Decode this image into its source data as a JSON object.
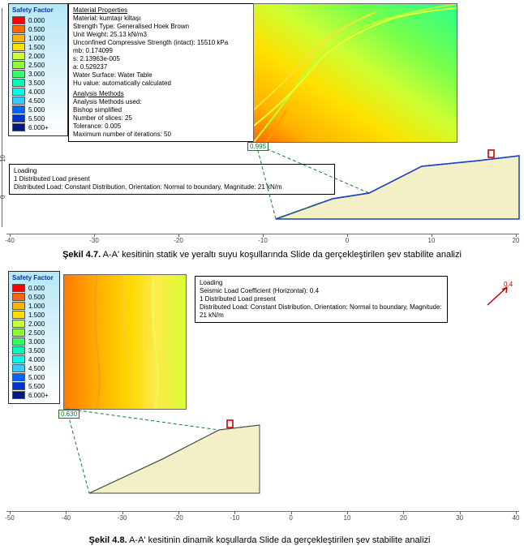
{
  "figure1": {
    "legend": {
      "title": "Safety Factor",
      "items": [
        {
          "label": "0.000",
          "color": "#ff0000"
        },
        {
          "label": "0.500",
          "color": "#ff6600"
        },
        {
          "label": "1.000",
          "color": "#ffb300"
        },
        {
          "label": "1.500",
          "color": "#ffe000"
        },
        {
          "label": "2.000",
          "color": "#ccff33"
        },
        {
          "label": "2.500",
          "color": "#8cff33"
        },
        {
          "label": "3.000",
          "color": "#33ff66"
        },
        {
          "label": "3.500",
          "color": "#00ffb3"
        },
        {
          "label": "4.000",
          "color": "#00ffe6"
        },
        {
          "label": "4.500",
          "color": "#33ccff"
        },
        {
          "label": "5.000",
          "color": "#0066ff"
        },
        {
          "label": "5.500",
          "color": "#0033cc"
        },
        {
          "label": "6.000+",
          "color": "#001a80"
        }
      ]
    },
    "material_box": {
      "title": "Material Properties",
      "lines": [
        "Material: kumtaşı kiltaşı",
        "Strength Type: Generalised Hoek Brown",
        "Unit Weight: 25.13 kN/m3",
        "Unconfined Compressive Strength (intact): 15510 kPa",
        "mb: 0.174099",
        "s: 2.13963e-005",
        "a: 0.529237",
        "Water Surface: Water Table",
        "Hu value: automatically calculated"
      ],
      "analysis_title": "Analysis Methods",
      "analysis_lines": [
        "Analysis Methods used:",
        "Bishop simplified",
        "Number of slices: 25",
        "Tolerance: 0.005",
        "Maximum number of iterations: 50"
      ]
    },
    "loading_box": {
      "title": "Loading",
      "lines": [
        "1 Distributed Load present",
        "Distributed Load: Constant Distribution, Orientation:  Normal to boundary, Magnitude:  21 kN/m"
      ]
    },
    "sf_value": "0.995",
    "axis": {
      "ticks": [
        "-40",
        "-30",
        "-20",
        "-10",
        "0",
        "10",
        "20"
      ],
      "xmin": -40,
      "xmax": 20
    },
    "side_ticks": [
      "10",
      "0"
    ]
  },
  "figure2": {
    "legend": {
      "title": "Safety Factor",
      "items": [
        {
          "label": "0.000",
          "color": "#ff0000"
        },
        {
          "label": "0.500",
          "color": "#ff6600"
        },
        {
          "label": "1.000",
          "color": "#ffb300"
        },
        {
          "label": "1.500",
          "color": "#ffe000"
        },
        {
          "label": "2.000",
          "color": "#ccff33"
        },
        {
          "label": "2.500",
          "color": "#8cff33"
        },
        {
          "label": "3.000",
          "color": "#33ff66"
        },
        {
          "label": "3.500",
          "color": "#00ffb3"
        },
        {
          "label": "4.000",
          "color": "#00ffe6"
        },
        {
          "label": "4.500",
          "color": "#33ccff"
        },
        {
          "label": "5.000",
          "color": "#0066ff"
        },
        {
          "label": "5.500",
          "color": "#0033cc"
        },
        {
          "label": "6.000+",
          "color": "#001a80"
        }
      ]
    },
    "loading_box": {
      "title": "Loading",
      "lines": [
        "Seismic Load Coefficient (Horizontal): 0.4",
        "1 Distributed Load present",
        "Distributed Load: Constant Distribution, Orientation:  Normal to boundary, Magnitude:  21 kN/m"
      ]
    },
    "sf_value": "0.630",
    "seismic_label": "0.4",
    "axis": {
      "ticks": [
        "-50",
        "-40",
        "-30",
        "-20",
        "-10",
        "0",
        "10",
        "20",
        "30",
        "40"
      ],
      "xmin": -50,
      "xmax": 40
    }
  },
  "caption1": "Şekil 4.7. A-A' kesitinin statik ve yeraltı suyu koşullarında Slide da gerçekleştirilen şev stabilite analizi",
  "caption2": "Şekil 4.8. A-A' kesitinin dinamik koşullarda Slide da gerçekleştirilen şev stabilite analizi",
  "caption1_bold": "Şekil 4.7.",
  "caption2_bold": "Şekil 4.8.",
  "caption1_rest": " A-A' kesitinin statik ve yeraltı suyu koşullarında Slide da gerçekleştirilen şev stabilite analizi",
  "caption2_rest": " A-A' kesitinin dinamik koşullarda Slide da gerçekleştirilen şev stabilite analizi",
  "slope_fill": "#f3f0c8",
  "slope_stroke": "#1f3fbf",
  "failure_stroke": "#0b7f2e",
  "load_marker_color": "#d00000",
  "white": "#ffffff"
}
